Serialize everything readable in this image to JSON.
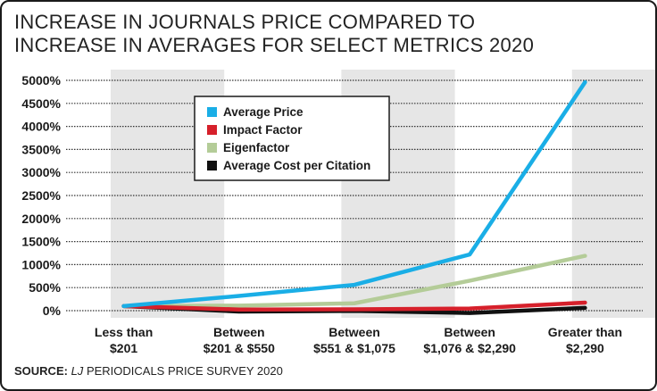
{
  "title_lines": [
    "INCREASE IN JOURNALS PRICE COMPARED TO",
    "INCREASE IN AVERAGES FOR SELECT METRICS 2020"
  ],
  "source": {
    "label": "SOURCE:",
    "publication": "LJ",
    "rest": "PERIODICALS PRICE SURVEY 2020"
  },
  "chart_data": {
    "type": "line",
    "title": "INCREASE IN JOURNALS PRICE COMPARED TO INCREASE IN AVERAGES FOR SELECT METRICS 2020",
    "xlabel": "",
    "ylabel": "",
    "ylim": [
      0,
      5000
    ],
    "y_ticks": [
      0,
      500,
      1000,
      1500,
      2000,
      2500,
      3000,
      3500,
      4000,
      4500,
      5000
    ],
    "y_tick_suffix": "%",
    "grid": true,
    "legend_position": "top-left",
    "categories": [
      [
        "Less than",
        "$201"
      ],
      [
        "Between",
        "$201 & $550"
      ],
      [
        "Between",
        "$551 & $1,075"
      ],
      [
        "Between",
        "$1,076 & $2,290"
      ],
      [
        "Greater than",
        "$2,290"
      ]
    ],
    "series": [
      {
        "name": "Average Price",
        "color": "#1aaee6",
        "values": [
          100,
          320,
          560,
          1220,
          4960
        ]
      },
      {
        "name": "Impact Factor",
        "color": "#d6202b",
        "values": [
          100,
          25,
          30,
          45,
          175
        ]
      },
      {
        "name": "Eigenfactor",
        "color": "#b4cc98",
        "values": [
          100,
          110,
          160,
          650,
          1190
        ]
      },
      {
        "name": "Average Cost per Citation",
        "color": "#111111",
        "values": [
          100,
          -20,
          -5,
          -50,
          60
        ]
      }
    ],
    "colors": {
      "band": "#e6e6e6",
      "grid": "#333333",
      "text": "#1a1a1a"
    }
  }
}
